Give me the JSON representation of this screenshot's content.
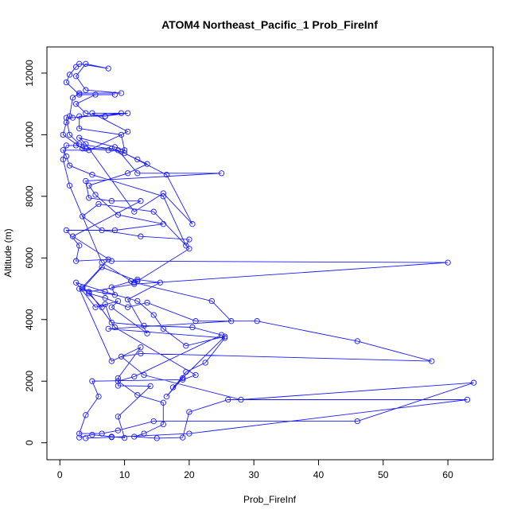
{
  "chart_data": {
    "type": "line",
    "title": "ATOM4 Northeast_Pacific_1 Prob_FireInf",
    "xlabel": "Prob_FireInf",
    "ylabel": "Altitude (m)",
    "xlim": [
      -2,
      67
    ],
    "ylim": [
      -550,
      12850
    ],
    "xticks": [
      0,
      10,
      20,
      30,
      40,
      50,
      60
    ],
    "yticks": [
      0,
      2000,
      4000,
      6000,
      8000,
      10000,
      12000
    ],
    "grid": false,
    "legend": "none",
    "color": "#1a1aff",
    "series": [
      {
        "points": [
          [
            3,
            170
          ],
          [
            5,
            260
          ],
          [
            8,
            200
          ],
          [
            10,
            160
          ],
          [
            9,
            850
          ],
          [
            14,
            1840
          ],
          [
            9,
            1850
          ],
          [
            9,
            2100
          ],
          [
            12.5,
            3100
          ],
          [
            8,
            2650
          ],
          [
            3,
            5000
          ],
          [
            8.5,
            4800
          ],
          [
            8,
            5050
          ],
          [
            12,
            5300
          ],
          [
            15.5,
            5200
          ],
          [
            10.5,
            4650
          ],
          [
            13.5,
            3550
          ],
          [
            8,
            4400
          ],
          [
            9,
            4600
          ],
          [
            5.5,
            4400
          ],
          [
            2.5,
            5200
          ],
          [
            7,
            4900
          ],
          [
            12,
            4600
          ],
          [
            14.5,
            4150
          ],
          [
            16,
            3700
          ],
          [
            19.5,
            3150
          ],
          [
            25.5,
            3450
          ],
          [
            17.5,
            1800
          ],
          [
            19,
            2100
          ],
          [
            16.5,
            1500
          ],
          [
            19.5,
            2300
          ],
          [
            22.5,
            2600
          ],
          [
            25.5,
            3400
          ],
          [
            7.5,
            3700
          ],
          [
            26.5,
            3950
          ],
          [
            23.5,
            4600
          ],
          [
            11.5,
            5200
          ],
          [
            11,
            5250
          ],
          [
            6.5,
            5850
          ],
          [
            1.5,
            8350
          ],
          [
            0.5,
            9200
          ],
          [
            1,
            9650
          ],
          [
            2.5,
            9650
          ],
          [
            4,
            9550
          ],
          [
            8,
            9550
          ],
          [
            10,
            9400
          ],
          [
            16.5,
            8700
          ],
          [
            20.5,
            7100
          ],
          [
            16,
            8100
          ],
          [
            11.5,
            7500
          ],
          [
            4,
            9700
          ],
          [
            3,
            9900
          ],
          [
            8.5,
            9600
          ],
          [
            10,
            9500
          ],
          [
            9.5,
            10000
          ],
          [
            3,
            10200
          ],
          [
            3,
            10600
          ],
          [
            7,
            10600
          ],
          [
            9.5,
            10700
          ],
          [
            2,
            10550
          ],
          [
            1,
            10550
          ],
          [
            1.5,
            10000
          ],
          [
            3,
            9700
          ],
          [
            9,
            9500
          ],
          [
            12,
            8750
          ],
          [
            25,
            8750
          ],
          [
            4,
            8500
          ],
          [
            4.5,
            7950
          ],
          [
            8,
            7850
          ],
          [
            12.5,
            7850
          ],
          [
            2,
            6700
          ],
          [
            8,
            5900
          ],
          [
            60,
            5850
          ],
          [
            11.5,
            5150
          ],
          [
            4.5,
            4900
          ],
          [
            8.5,
            3750
          ],
          [
            21,
            2200
          ],
          [
            19,
            2050
          ],
          [
            5,
            2000
          ],
          [
            6,
            1500
          ],
          [
            4,
            900
          ],
          [
            3,
            300
          ],
          [
            6.5,
            300
          ],
          [
            9,
            400
          ],
          [
            14.5,
            700
          ],
          [
            46,
            700
          ],
          [
            64,
            1950
          ],
          [
            28,
            1400
          ],
          [
            13,
            2200
          ],
          [
            9.5,
            2800
          ],
          [
            12.5,
            2900
          ],
          [
            57.5,
            2650
          ],
          [
            46,
            3300
          ],
          [
            30.5,
            3950
          ],
          [
            21,
            3950
          ],
          [
            13.5,
            4550
          ],
          [
            10.5,
            4400
          ],
          [
            7,
            4700
          ],
          [
            4.5,
            4850
          ],
          [
            3.5,
            5000
          ],
          [
            6.5,
            5700
          ],
          [
            12,
            5250
          ],
          [
            20,
            6300
          ],
          [
            14.5,
            7500
          ],
          [
            6,
            7750
          ],
          [
            3.5,
            7350
          ],
          [
            6.5,
            6900
          ],
          [
            12.5,
            6700
          ],
          [
            20,
            6600
          ],
          [
            19.5,
            6400
          ],
          [
            16,
            8000
          ],
          [
            5,
            8700
          ],
          [
            1.5,
            9000
          ],
          [
            1,
            9300
          ],
          [
            0.5,
            9500
          ],
          [
            4.5,
            9500
          ],
          [
            10.5,
            10100
          ],
          [
            5,
            10700
          ],
          [
            10.5,
            10700
          ],
          [
            7,
            10600
          ],
          [
            4,
            10700
          ],
          [
            2.5,
            11000
          ],
          [
            5.5,
            11300
          ],
          [
            8.5,
            11300
          ],
          [
            3,
            11300
          ],
          [
            1,
            11700
          ],
          [
            1.5,
            11950
          ],
          [
            2.5,
            12200
          ],
          [
            3,
            12300
          ],
          [
            7.5,
            12150
          ],
          [
            4,
            12300
          ],
          [
            2.5,
            11900
          ],
          [
            4,
            11450
          ],
          [
            9.5,
            11350
          ],
          [
            3,
            11350
          ],
          [
            2,
            11200
          ],
          [
            1.5,
            10600
          ],
          [
            1,
            10400
          ],
          [
            0.5,
            10000
          ],
          [
            3.5,
            9550
          ],
          [
            7.5,
            9500
          ],
          [
            9.5,
            9450
          ],
          [
            12,
            9200
          ],
          [
            13.5,
            9050
          ],
          [
            10.5,
            8750
          ],
          [
            4.5,
            8350
          ],
          [
            5.5,
            8050
          ],
          [
            9,
            7400
          ],
          [
            16,
            7100
          ],
          [
            8.5,
            6900
          ],
          [
            1,
            6900
          ],
          [
            3,
            6400
          ],
          [
            2.5,
            5900
          ],
          [
            7.5,
            5950
          ],
          [
            3.5,
            5050
          ],
          [
            6.5,
            4400
          ],
          [
            7,
            4500
          ],
          [
            8,
            3900
          ],
          [
            13,
            3800
          ],
          [
            20.5,
            3750
          ],
          [
            25,
            3500
          ],
          [
            11.5,
            2150
          ],
          [
            9,
            2000
          ],
          [
            12,
            1550
          ],
          [
            16,
            1300
          ],
          [
            16,
            600
          ],
          [
            13,
            300
          ],
          [
            11.5,
            200
          ],
          [
            15,
            150
          ],
          [
            19,
            170
          ],
          [
            20,
            1000
          ],
          [
            26,
            1400
          ],
          [
            63,
            1400
          ],
          [
            20,
            300
          ],
          [
            8,
            180
          ],
          [
            4,
            150
          ]
        ]
      }
    ]
  }
}
